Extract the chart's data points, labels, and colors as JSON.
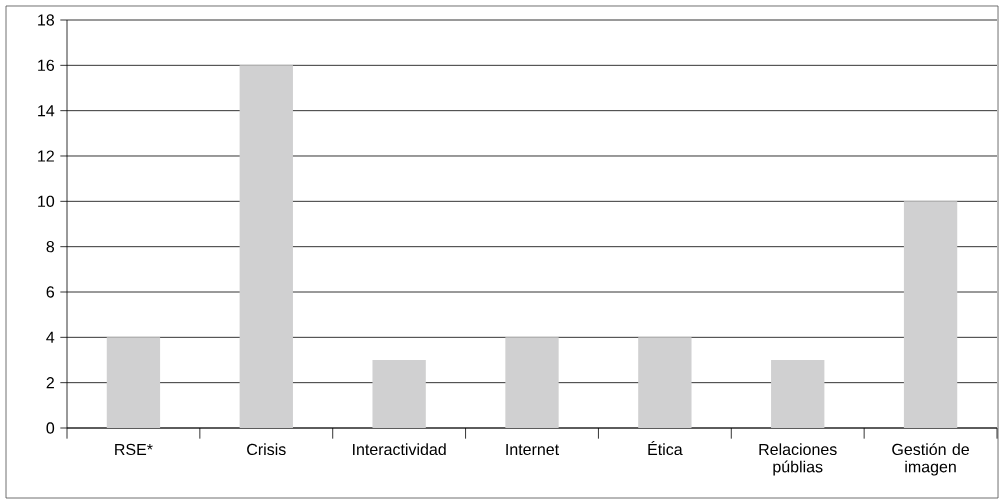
{
  "chart_data": {
    "type": "bar",
    "categories": [
      "RSE*",
      "Crisis",
      "Interactividad",
      "Internet",
      "Ética",
      "Relaciones públias",
      "Gestión de imagen"
    ],
    "values": [
      4,
      16,
      3,
      4,
      4,
      3,
      10
    ],
    "color": "#d0d0d1",
    "ylim": [
      0,
      18
    ],
    "yticks": [
      0,
      2,
      4,
      6,
      8,
      10,
      12,
      14,
      16,
      18
    ],
    "grid": "y"
  }
}
